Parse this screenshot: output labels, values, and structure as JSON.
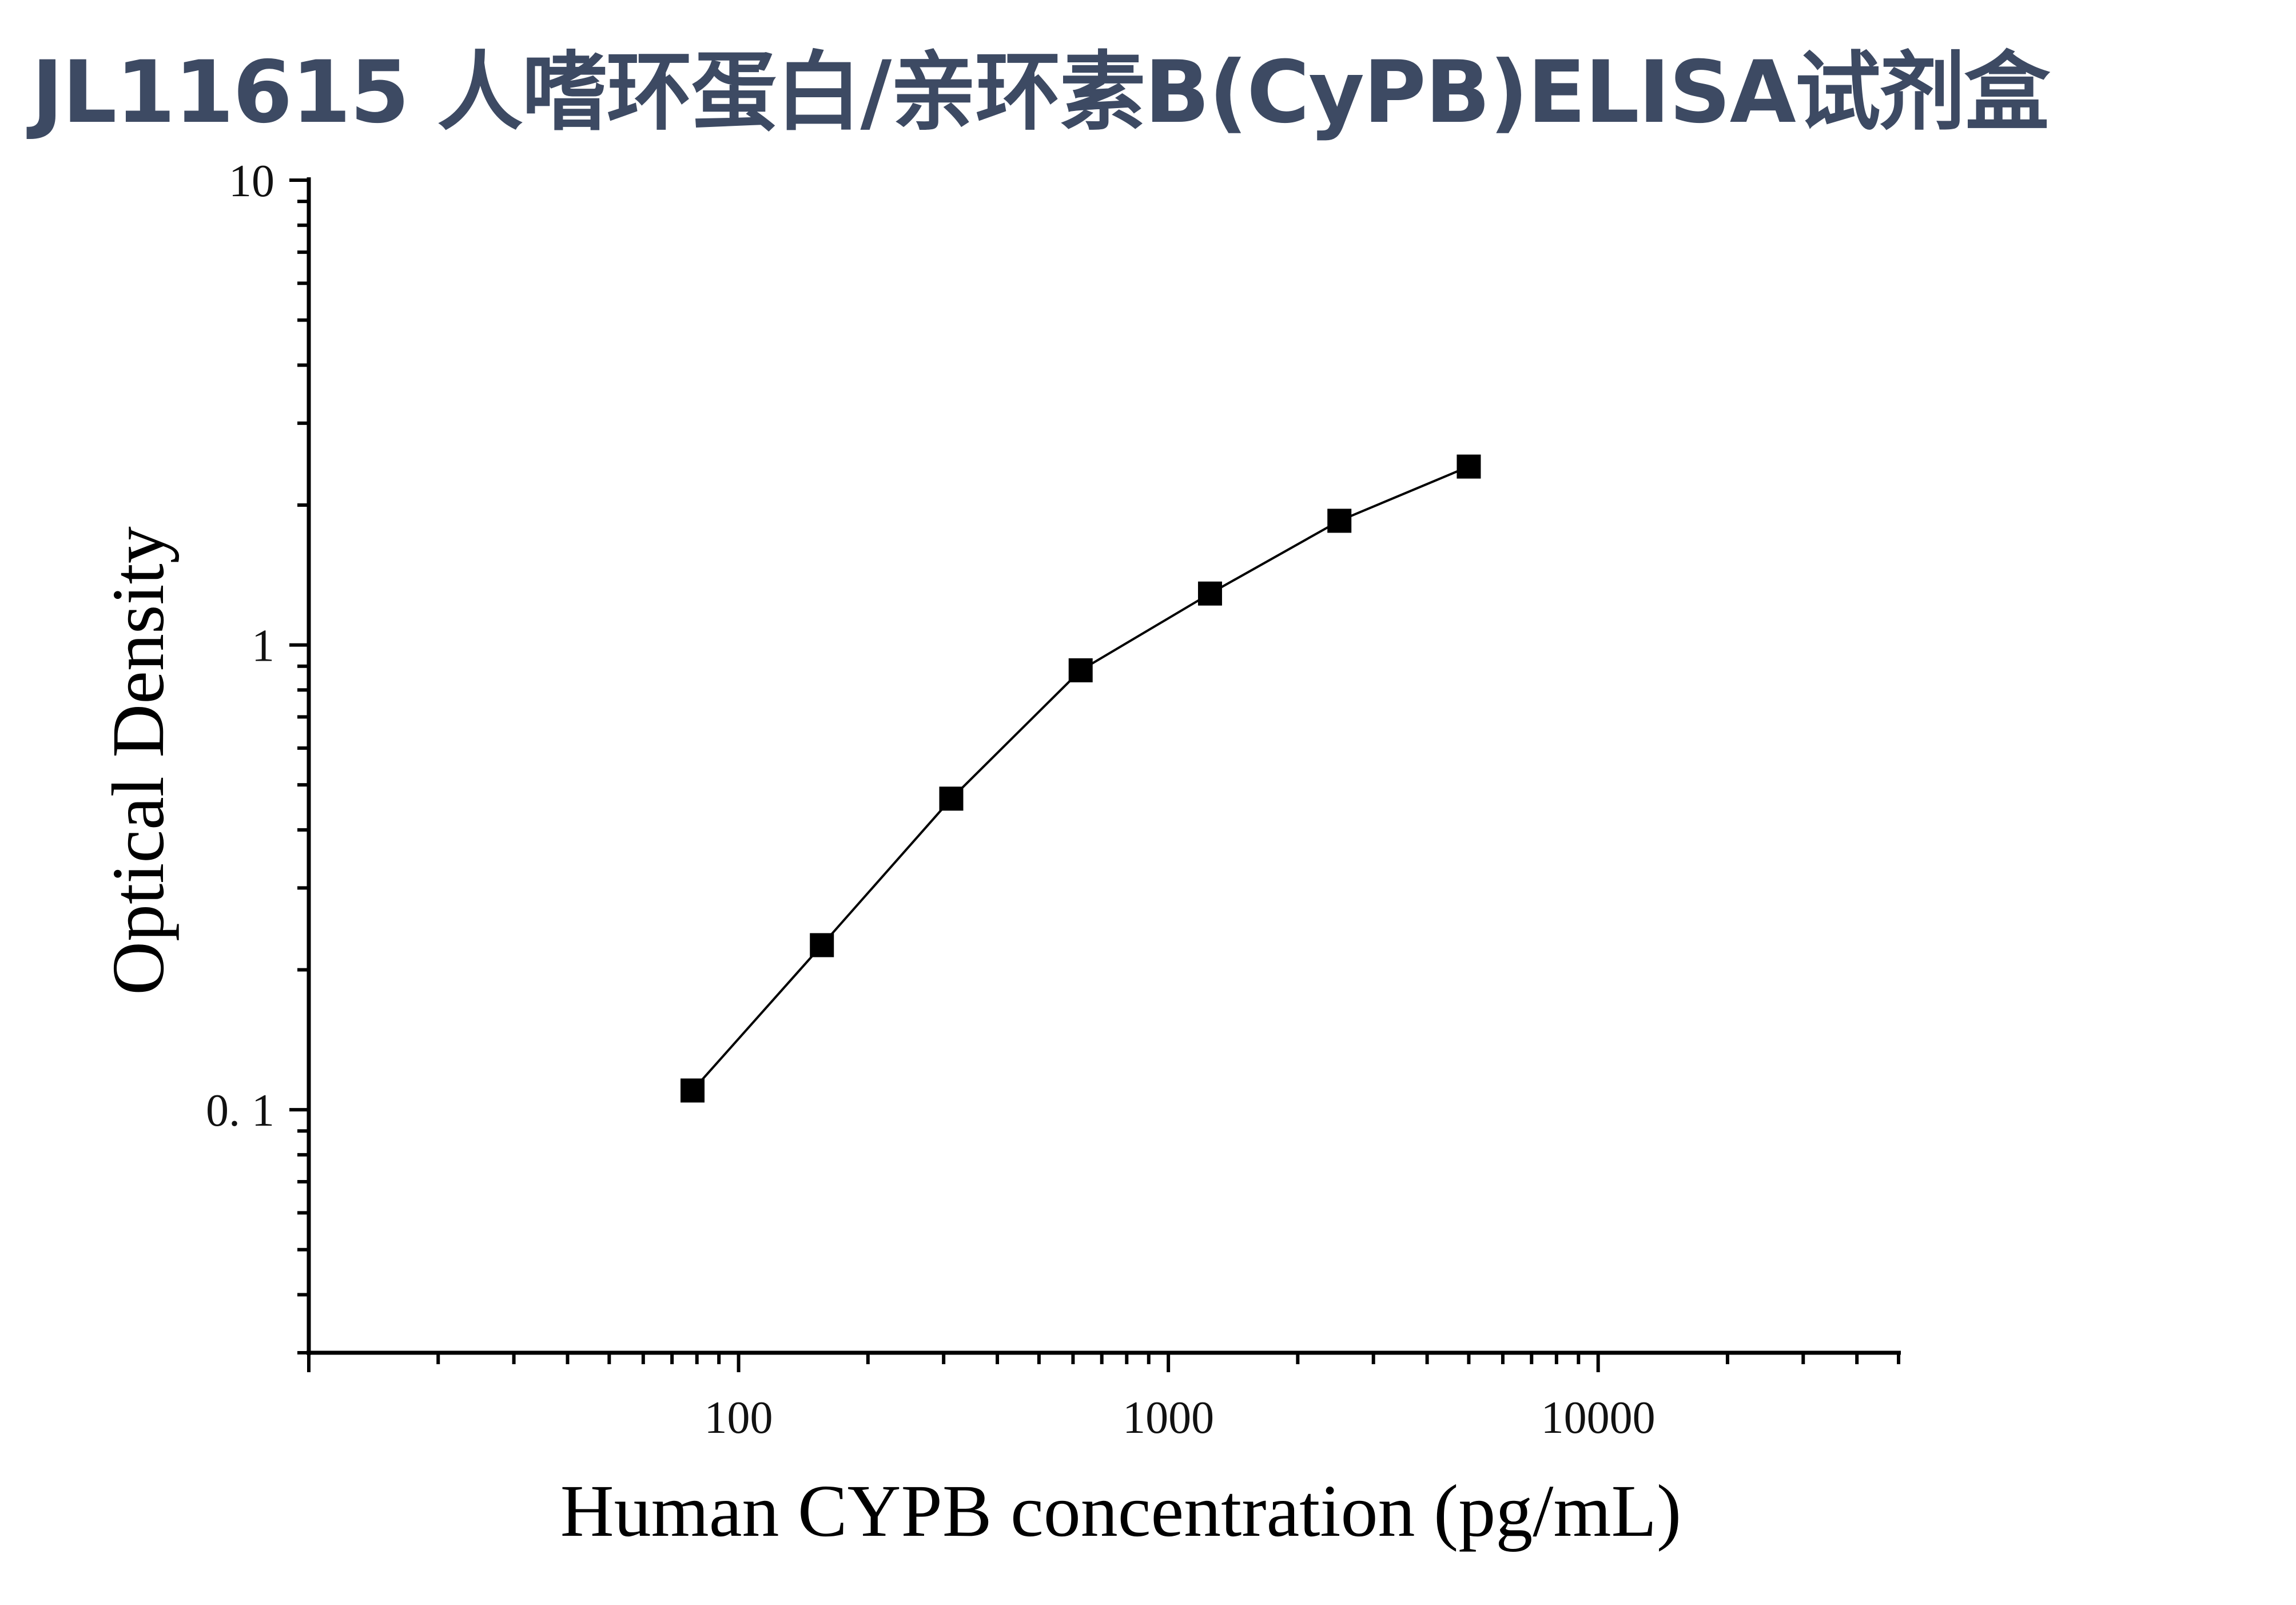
{
  "title": "JL11615 人嗜环蛋白/亲环素B(CyPB)ELISA试剂盒",
  "colors": {
    "title": "#3d4a63",
    "axis": "#000000",
    "marker": "#000000",
    "line": "#000000"
  },
  "chart_data": {
    "type": "scatter",
    "title": "JL11615 人嗜环蛋白/亲环素B(CyPB)ELISA试剂盒",
    "xlabel": "Human CYPB concentration (pg/mL)",
    "ylabel": "Optical Density",
    "xscale": "log",
    "yscale": "log",
    "xlim": [
      10,
      50000
    ],
    "ylim": [
      0.03,
      10
    ],
    "xticks": [
      100,
      1000,
      10000
    ],
    "xtick_labels": [
      "100",
      "1000",
      "10000"
    ],
    "yticks": [
      0.1,
      1,
      10
    ],
    "ytick_labels": [
      "0. 1",
      "1",
      "10"
    ],
    "grid": false,
    "legend": "none",
    "marker": "square",
    "connected": true,
    "series": [
      {
        "x": [
          78.13,
          156.25,
          312.5,
          625,
          1250,
          2500,
          5000
        ],
        "y": [
          0.11,
          0.226,
          0.467,
          0.882,
          1.29,
          1.85,
          2.42
        ]
      }
    ]
  }
}
